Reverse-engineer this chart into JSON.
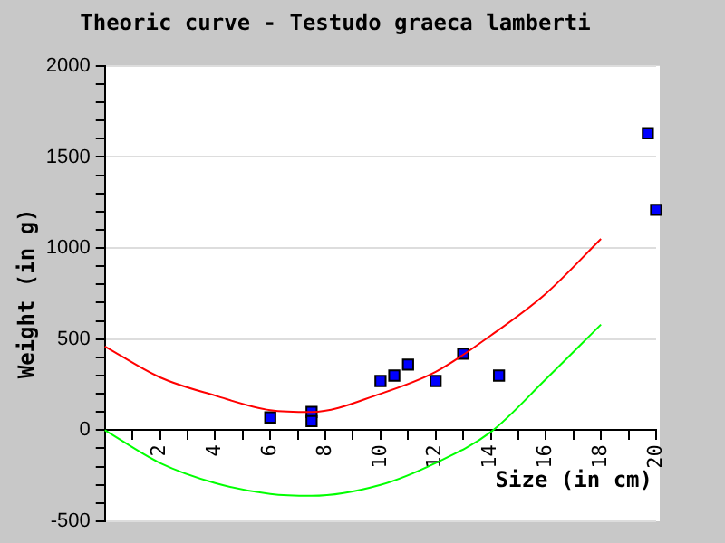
{
  "chart_data": {
    "type": "scatter",
    "title": "Theoric curve - Testudo graeca lamberti",
    "xlabel": "Size (in cm)",
    "ylabel": "Weight (in g)",
    "xlim": [
      0,
      20
    ],
    "ylim": [
      -500,
      2000
    ],
    "xticks": [
      {
        "value": 0,
        "label": null
      },
      {
        "value": 1,
        "label": null
      },
      2,
      {
        "value": 3,
        "label": null
      },
      4,
      {
        "value": 5,
        "label": null
      },
      6,
      {
        "value": 7,
        "label": null
      },
      8,
      {
        "value": 9,
        "label": null
      },
      10,
      {
        "value": 11,
        "label": null
      },
      12,
      {
        "value": 13,
        "label": null
      },
      14,
      {
        "value": 15,
        "label": null
      },
      16,
      {
        "value": 17,
        "label": null
      },
      18,
      {
        "value": 19,
        "label": null
      },
      20
    ],
    "yticks": [
      -500,
      {
        "value": -400,
        "label": null
      },
      {
        "value": -300,
        "label": null
      },
      {
        "value": -200,
        "label": null
      },
      {
        "value": -100,
        "label": null
      },
      0,
      {
        "value": 100,
        "label": null
      },
      {
        "value": 200,
        "label": null
      },
      {
        "value": 300,
        "label": null
      },
      {
        "value": 400,
        "label": null
      },
      500,
      {
        "value": 600,
        "label": null
      },
      {
        "value": 700,
        "label": null
      },
      {
        "value": 800,
        "label": null
      },
      {
        "value": 900,
        "label": null
      },
      1000,
      {
        "value": 1100,
        "label": null
      },
      {
        "value": 1200,
        "label": null
      },
      {
        "value": 1300,
        "label": null
      },
      {
        "value": 1400,
        "label": null
      },
      1500,
      {
        "value": 1600,
        "label": null
      },
      {
        "value": 1700,
        "label": null
      },
      {
        "value": 1800,
        "label": null
      },
      {
        "value": 1900,
        "label": null
      },
      2000
    ],
    "grid": "y",
    "legend": false,
    "series": [
      {
        "type": "line",
        "color": "#ff0000",
        "marker": "none",
        "x": [
          0,
          2,
          4,
          6,
          7.5,
          10,
          12,
          14,
          16,
          18
        ],
        "values": [
          460,
          290,
          190,
          110,
          100,
          200,
          320,
          520,
          750,
          1050
        ]
      },
      {
        "type": "line",
        "color": "#00ff00",
        "marker": "none",
        "x": [
          0,
          2,
          4,
          6,
          7.5,
          10,
          12,
          14,
          16,
          18
        ],
        "values": [
          0,
          -180,
          -290,
          -350,
          -360,
          -300,
          -180,
          -10,
          280,
          580
        ]
      },
      {
        "color": "#0000ff",
        "marker": "square",
        "x": [
          6,
          7.5,
          7.5,
          10,
          10.5,
          11,
          12,
          13,
          14.3,
          19.7,
          20
        ],
        "values": [
          70,
          100,
          50,
          270,
          300,
          360,
          270,
          420,
          300,
          1630,
          1210
        ]
      }
    ]
  }
}
